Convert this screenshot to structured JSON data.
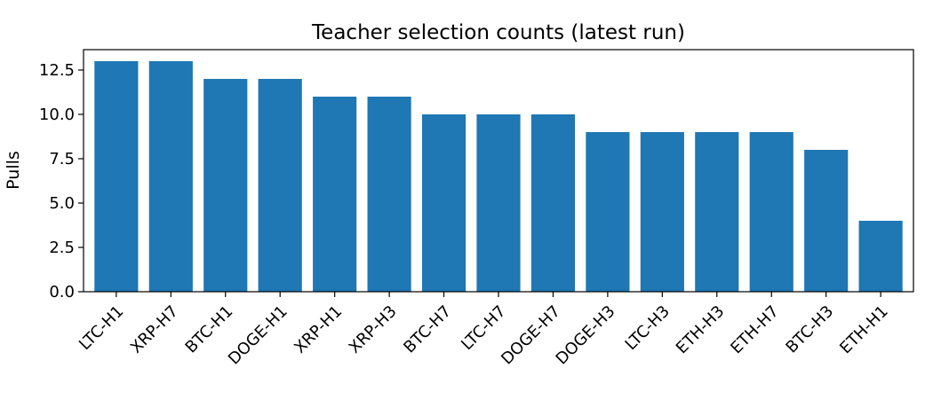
{
  "chart_data": {
    "type": "bar",
    "title": "Teacher selection counts (latest run)",
    "xlabel": "",
    "ylabel": "Pulls",
    "categories": [
      "LTC-H1",
      "XRP-H7",
      "BTC-H1",
      "DOGE-H1",
      "XRP-H1",
      "XRP-H3",
      "BTC-H7",
      "LTC-H7",
      "DOGE-H7",
      "DOGE-H3",
      "LTC-H3",
      "ETH-H3",
      "ETH-H7",
      "BTC-H3",
      "ETH-H1"
    ],
    "values": [
      13,
      13,
      12,
      12,
      11,
      11,
      10,
      10,
      10,
      9,
      9,
      9,
      9,
      8,
      4
    ],
    "ylim": [
      0,
      13.65
    ],
    "yticks": [
      0.0,
      2.5,
      5.0,
      7.5,
      10.0,
      12.5
    ],
    "ytick_labels": [
      "0.0",
      "2.5",
      "5.0",
      "7.5",
      "10.0",
      "12.5"
    ],
    "bar_color": "#1f77b4",
    "grid": false,
    "legend": "none"
  }
}
